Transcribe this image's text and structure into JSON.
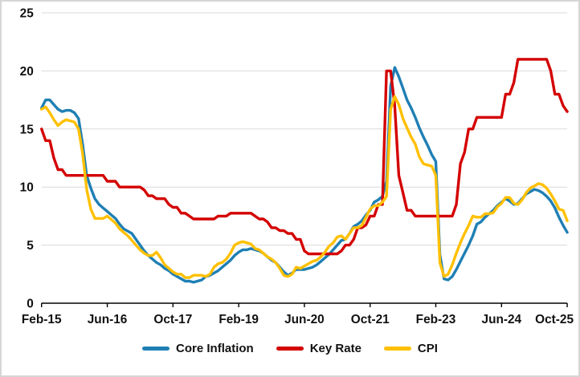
{
  "chart_data": {
    "type": "line",
    "title": "",
    "xlabel": "",
    "ylabel": "",
    "ylim": [
      0,
      25
    ],
    "yticks": [
      0,
      5,
      10,
      15,
      20,
      25
    ],
    "grid": true,
    "legend_position": "bottom",
    "background_color": "#ffffff",
    "grid_color": "#d9d9d9",
    "axis_color": "#000000",
    "text_color": "#111111",
    "x_tick_labels": [
      "Feb-15",
      "Jun-16",
      "Oct-17",
      "Feb-19",
      "Jun-20",
      "Oct-21",
      "Feb-23",
      "Jun-24",
      "Oct-25"
    ],
    "x": [
      "Feb-15",
      "Mar-15",
      "Apr-15",
      "May-15",
      "Jun-15",
      "Jul-15",
      "Aug-15",
      "Sep-15",
      "Oct-15",
      "Nov-15",
      "Dec-15",
      "Jan-16",
      "Feb-16",
      "Mar-16",
      "Apr-16",
      "May-16",
      "Jun-16",
      "Jul-16",
      "Aug-16",
      "Sep-16",
      "Oct-16",
      "Nov-16",
      "Dec-16",
      "Jan-17",
      "Feb-17",
      "Mar-17",
      "Apr-17",
      "May-17",
      "Jun-17",
      "Jul-17",
      "Aug-17",
      "Sep-17",
      "Oct-17",
      "Nov-17",
      "Dec-17",
      "Jan-18",
      "Feb-18",
      "Mar-18",
      "Apr-18",
      "May-18",
      "Jun-18",
      "Jul-18",
      "Aug-18",
      "Sep-18",
      "Oct-18",
      "Nov-18",
      "Dec-18",
      "Jan-19",
      "Feb-19",
      "Mar-19",
      "Apr-19",
      "May-19",
      "Jun-19",
      "Jul-19",
      "Aug-19",
      "Sep-19",
      "Oct-19",
      "Nov-19",
      "Dec-19",
      "Jan-20",
      "Feb-20",
      "Mar-20",
      "Apr-20",
      "May-20",
      "Jun-20",
      "Jul-20",
      "Aug-20",
      "Sep-20",
      "Oct-20",
      "Nov-20",
      "Dec-20",
      "Jan-21",
      "Feb-21",
      "Mar-21",
      "Apr-21",
      "May-21",
      "Jun-21",
      "Jul-21",
      "Aug-21",
      "Sep-21",
      "Oct-21",
      "Nov-21",
      "Dec-21",
      "Jan-22",
      "Feb-22",
      "Mar-22",
      "Apr-22",
      "May-22",
      "Jun-22",
      "Jul-22",
      "Aug-22",
      "Sep-22",
      "Oct-22",
      "Nov-22",
      "Dec-22",
      "Jan-23",
      "Feb-23",
      "Mar-23",
      "Apr-23",
      "May-23",
      "Jun-23",
      "Jul-23",
      "Aug-23",
      "Sep-23",
      "Oct-23",
      "Nov-23",
      "Dec-23",
      "Jan-24",
      "Feb-24",
      "Mar-24",
      "Apr-24",
      "May-24",
      "Jun-24",
      "Jul-24",
      "Aug-24",
      "Sep-24",
      "Oct-24",
      "Nov-24",
      "Dec-24",
      "Jan-25",
      "Feb-25",
      "Mar-25",
      "Apr-25",
      "May-25",
      "Jun-25",
      "Jul-25",
      "Aug-25",
      "Sep-25",
      "Oct-25"
    ],
    "series": [
      {
        "name": "Core Inflation",
        "color": "#1f7fb4",
        "values": [
          16.8,
          17.5,
          17.5,
          17.1,
          16.7,
          16.5,
          16.6,
          16.6,
          16.4,
          15.9,
          13.7,
          11.0,
          9.9,
          9.0,
          8.5,
          8.2,
          7.9,
          7.6,
          7.3,
          6.8,
          6.4,
          6.2,
          6.0,
          5.5,
          5.0,
          4.5,
          4.1,
          3.8,
          3.5,
          3.3,
          3.0,
          2.8,
          2.5,
          2.3,
          2.1,
          1.9,
          1.9,
          1.8,
          1.9,
          2.0,
          2.3,
          2.4,
          2.6,
          2.8,
          3.1,
          3.4,
          3.7,
          4.1,
          4.4,
          4.6,
          4.6,
          4.7,
          4.6,
          4.5,
          4.3,
          4.0,
          3.7,
          3.5,
          3.1,
          2.7,
          2.4,
          2.6,
          2.9,
          2.9,
          2.9,
          3.0,
          3.1,
          3.3,
          3.6,
          3.9,
          4.2,
          4.6,
          5.0,
          5.4,
          5.5,
          6.0,
          6.6,
          6.8,
          7.1,
          7.6,
          8.0,
          8.7,
          8.9,
          9.2,
          10.5,
          18.7,
          20.3,
          19.5,
          18.5,
          17.5,
          16.8,
          16.0,
          15.1,
          14.3,
          13.6,
          12.8,
          12.2,
          4.2,
          2.1,
          2.0,
          2.3,
          2.9,
          3.6,
          4.3,
          5.0,
          5.8,
          6.8,
          7.0,
          7.4,
          7.7,
          8.0,
          8.4,
          8.7,
          9.0,
          8.8,
          8.5,
          8.6,
          9.0,
          9.4,
          9.6,
          9.8,
          9.7,
          9.5,
          9.2,
          8.8,
          8.2,
          7.4,
          6.7,
          6.1
        ]
      },
      {
        "name": "Key Rate",
        "color": "#d40000",
        "values": [
          15,
          14,
          14,
          12.5,
          11.5,
          11.5,
          11,
          11,
          11,
          11,
          11,
          11,
          11,
          11,
          11,
          11,
          10.5,
          10.5,
          10.5,
          10,
          10,
          10,
          10,
          10,
          10,
          9.75,
          9.25,
          9.25,
          9,
          9,
          9,
          8.5,
          8.25,
          8.25,
          7.75,
          7.75,
          7.5,
          7.25,
          7.25,
          7.25,
          7.25,
          7.25,
          7.25,
          7.5,
          7.5,
          7.5,
          7.75,
          7.75,
          7.75,
          7.75,
          7.75,
          7.75,
          7.5,
          7.25,
          7.25,
          7,
          6.5,
          6.5,
          6.25,
          6.25,
          6,
          6,
          5.5,
          5.5,
          4.5,
          4.25,
          4.25,
          4.25,
          4.25,
          4.25,
          4.25,
          4.25,
          4.25,
          4.5,
          5,
          5,
          5.5,
          6.5,
          6.5,
          6.75,
          7.5,
          7.5,
          8.5,
          8.5,
          20,
          20,
          17,
          11,
          9.5,
          8,
          8,
          7.5,
          7.5,
          7.5,
          7.5,
          7.5,
          7.5,
          7.5,
          7.5,
          7.5,
          7.5,
          8.5,
          12,
          13,
          15,
          15,
          16,
          16,
          16,
          16,
          16,
          16,
          16,
          18,
          18,
          19,
          21,
          21,
          21,
          21,
          21,
          21,
          21,
          21,
          20,
          18,
          18,
          17,
          16.5
        ]
      },
      {
        "name": "CPI",
        "color": "#ffc000",
        "values": [
          16.7,
          16.9,
          16.4,
          15.8,
          15.3,
          15.6,
          15.8,
          15.7,
          15.6,
          15.0,
          12.9,
          9.8,
          8.1,
          7.3,
          7.3,
          7.3,
          7.5,
          7.2,
          6.9,
          6.4,
          6.1,
          5.8,
          5.4,
          5.0,
          4.6,
          4.3,
          4.1,
          4.1,
          4.4,
          3.9,
          3.3,
          3.0,
          2.7,
          2.5,
          2.5,
          2.2,
          2.2,
          2.4,
          2.4,
          2.4,
          2.3,
          2.5,
          3.1,
          3.4,
          3.5,
          3.8,
          4.3,
          5.0,
          5.2,
          5.3,
          5.2,
          5.1,
          4.7,
          4.6,
          4.3,
          4.0,
          3.8,
          3.5,
          3.0,
          2.4,
          2.3,
          2.5,
          3.1,
          3.0,
          3.2,
          3.4,
          3.6,
          3.7,
          4.0,
          4.4,
          4.9,
          5.2,
          5.7,
          5.8,
          5.5,
          6.0,
          6.5,
          6.5,
          6.7,
          7.4,
          8.1,
          8.4,
          8.4,
          8.7,
          9.2,
          16.7,
          17.8,
          17.1,
          15.9,
          15.1,
          14.3,
          13.7,
          12.6,
          12.0,
          11.9,
          11.8,
          11.0,
          3.5,
          2.3,
          2.5,
          3.3,
          4.3,
          5.2,
          6.0,
          6.7,
          7.5,
          7.4,
          7.4,
          7.7,
          7.7,
          7.8,
          8.3,
          8.6,
          9.1,
          9.1,
          8.6,
          8.5,
          8.9,
          9.5,
          9.9,
          10.1,
          10.3,
          10.2,
          9.9,
          9.4,
          8.8,
          8.1,
          8.0,
          7.1
        ]
      }
    ]
  }
}
